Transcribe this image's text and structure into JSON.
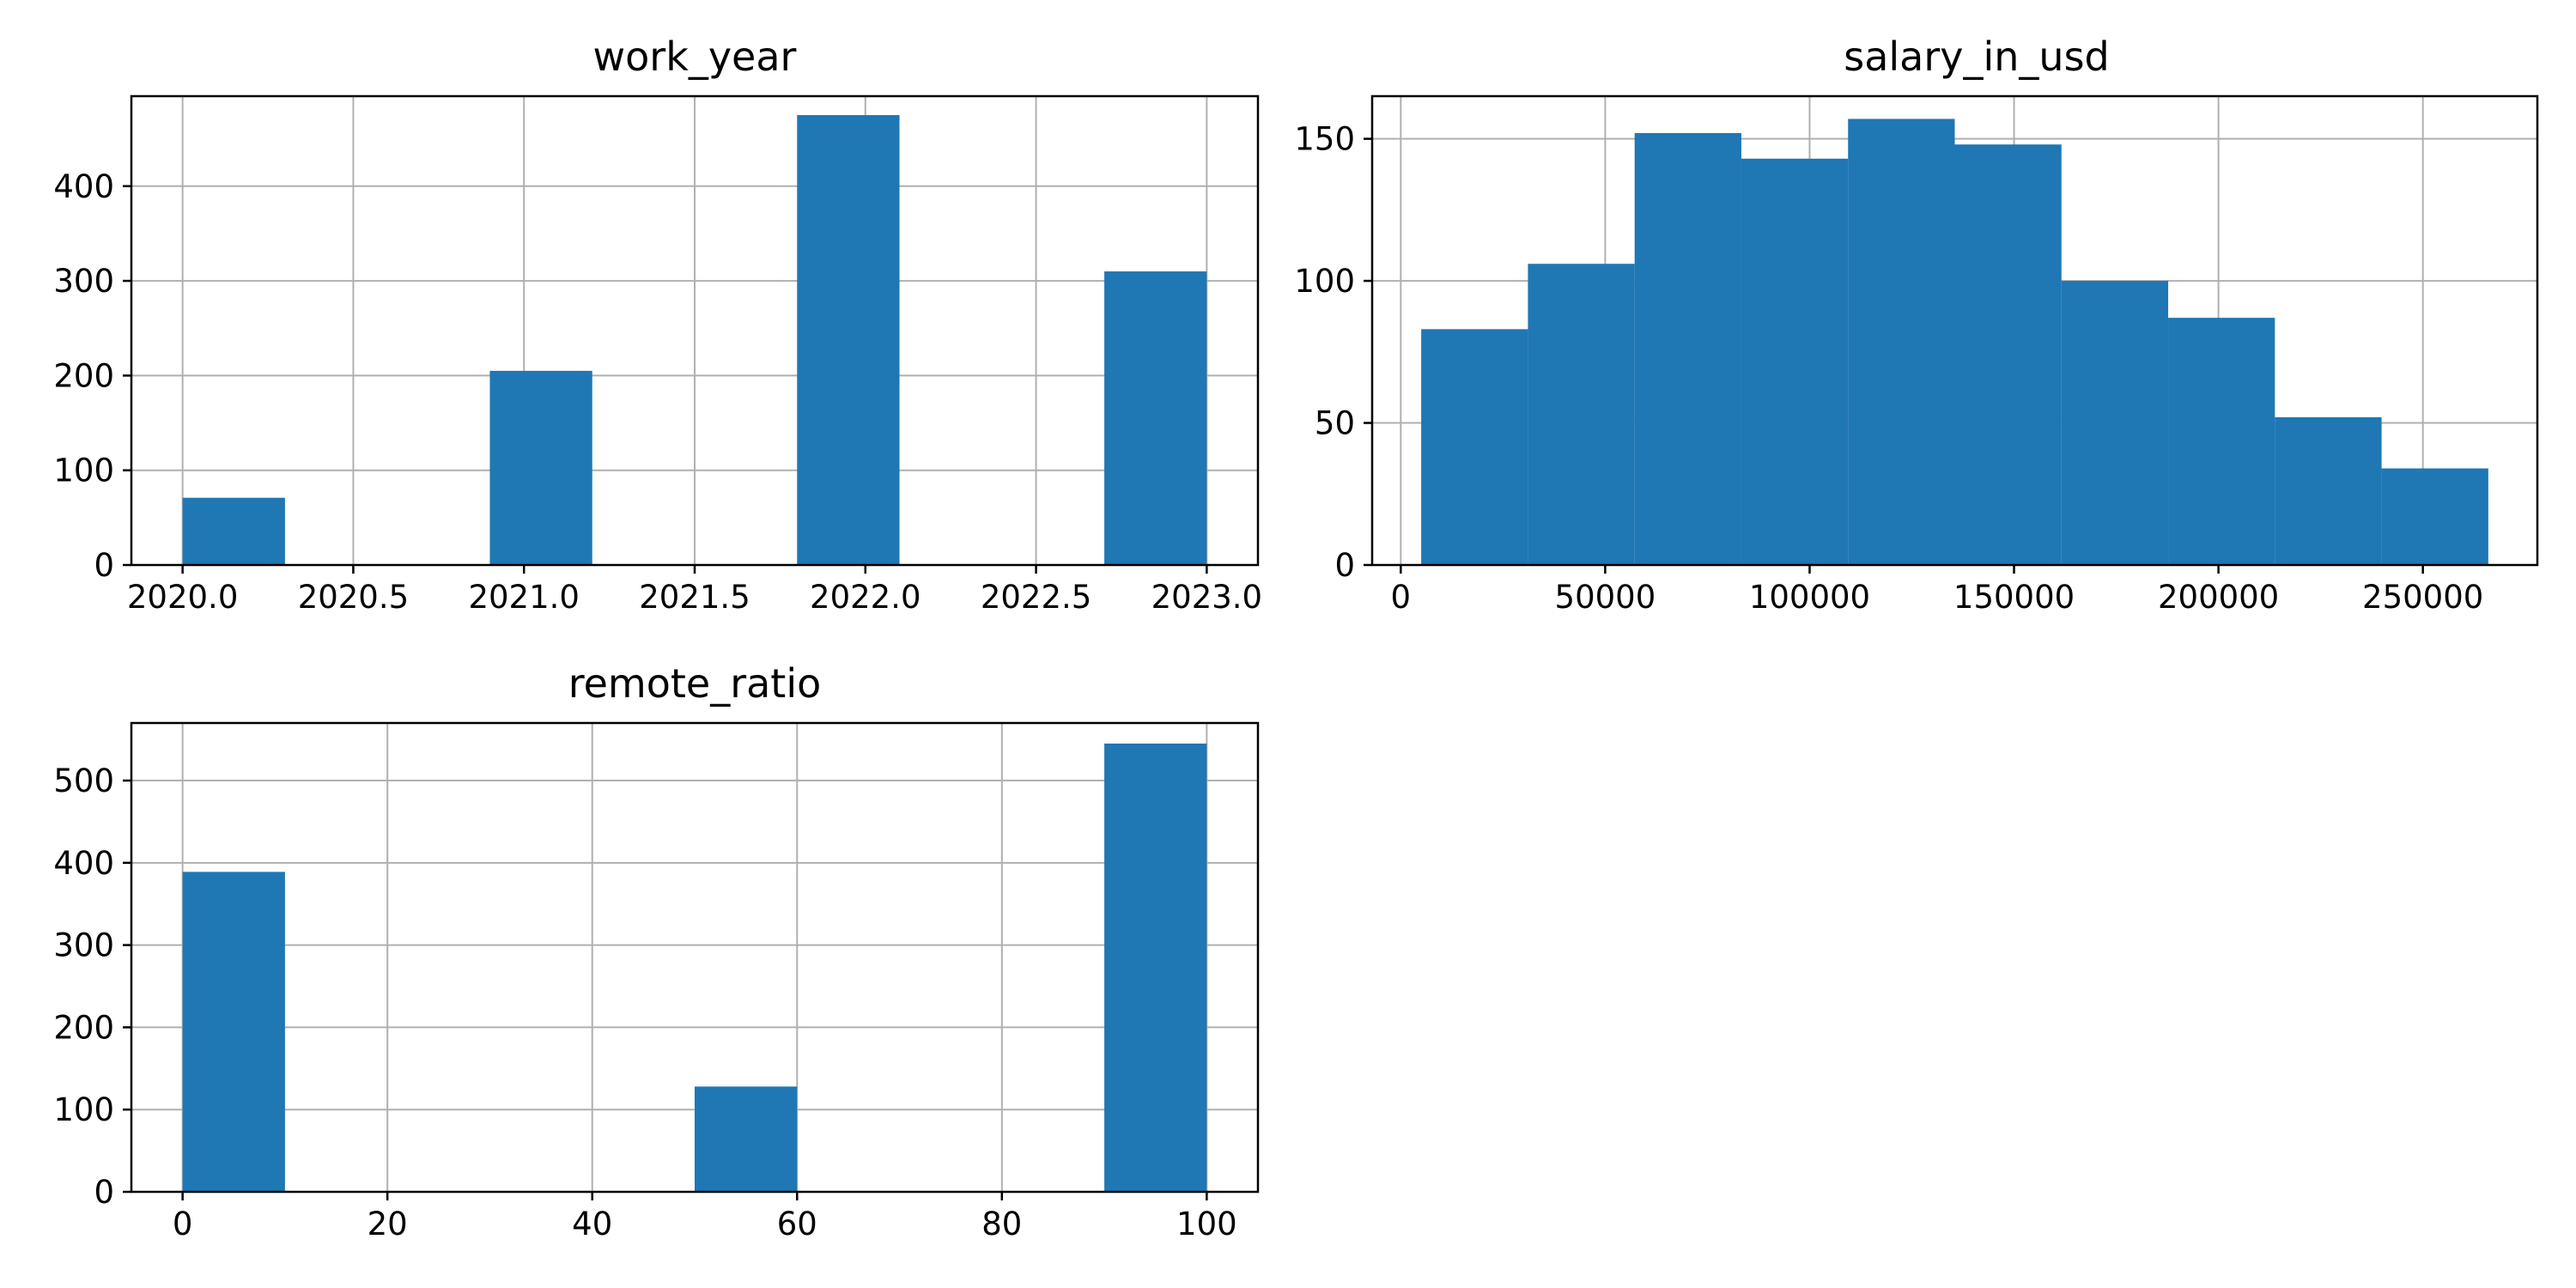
{
  "chart_data": [
    {
      "type": "bar",
      "title": "work_year",
      "xlabel": "",
      "ylabel": "",
      "grid": true,
      "color": "#1f77b4",
      "xlim": [
        2019.85,
        2023.15
      ],
      "ylim": [
        0,
        495
      ],
      "xticks": [
        "2020.0",
        "2020.5",
        "2021.0",
        "2021.5",
        "2022.0",
        "2022.5",
        "2023.0"
      ],
      "yticks": [
        "0",
        "100",
        "200",
        "300",
        "400"
      ],
      "bins": [
        {
          "start": 2020.0,
          "end": 2020.3,
          "count": 71
        },
        {
          "start": 2020.3,
          "end": 2020.6,
          "count": 0
        },
        {
          "start": 2020.6,
          "end": 2020.9,
          "count": 0
        },
        {
          "start": 2020.9,
          "end": 2021.2,
          "count": 205
        },
        {
          "start": 2021.2,
          "end": 2021.5,
          "count": 0
        },
        {
          "start": 2021.5,
          "end": 2021.8,
          "count": 0
        },
        {
          "start": 2021.8,
          "end": 2022.1,
          "count": 475
        },
        {
          "start": 2022.1,
          "end": 2022.4,
          "count": 0
        },
        {
          "start": 2022.4,
          "end": 2022.7,
          "count": 0
        },
        {
          "start": 2022.7,
          "end": 2023.0,
          "count": 310
        }
      ]
    },
    {
      "type": "bar",
      "title": "salary_in_usd",
      "xlabel": "",
      "ylabel": "",
      "grid": true,
      "color": "#1f77b4",
      "xlim": [
        -7000,
        278000
      ],
      "ylim": [
        0,
        165
      ],
      "xticks": [
        "0",
        "50000",
        "100000",
        "150000",
        "200000",
        "250000"
      ],
      "yticks": [
        "0",
        "50",
        "100",
        "150"
      ],
      "bins": [
        {
          "start": 5000,
          "end": 31100,
          "count": 83
        },
        {
          "start": 31100,
          "end": 57200,
          "count": 106
        },
        {
          "start": 57200,
          "end": 83300,
          "count": 152
        },
        {
          "start": 83300,
          "end": 109400,
          "count": 143
        },
        {
          "start": 109400,
          "end": 135500,
          "count": 157
        },
        {
          "start": 135500,
          "end": 161600,
          "count": 148
        },
        {
          "start": 161600,
          "end": 187700,
          "count": 100
        },
        {
          "start": 187700,
          "end": 213800,
          "count": 87
        },
        {
          "start": 213800,
          "end": 239900,
          "count": 52
        },
        {
          "start": 239900,
          "end": 266000,
          "count": 34
        }
      ]
    },
    {
      "type": "bar",
      "title": "remote_ratio",
      "xlabel": "",
      "ylabel": "",
      "grid": true,
      "color": "#1f77b4",
      "xlim": [
        -5,
        105
      ],
      "ylim": [
        0,
        570
      ],
      "xticks": [
        "0",
        "20",
        "40",
        "60",
        "80",
        "100"
      ],
      "yticks": [
        "0",
        "100",
        "200",
        "300",
        "400",
        "500"
      ],
      "bins": [
        {
          "start": 0,
          "end": 10,
          "count": 389
        },
        {
          "start": 10,
          "end": 20,
          "count": 0
        },
        {
          "start": 20,
          "end": 30,
          "count": 0
        },
        {
          "start": 30,
          "end": 40,
          "count": 0
        },
        {
          "start": 40,
          "end": 50,
          "count": 0
        },
        {
          "start": 50,
          "end": 60,
          "count": 128
        },
        {
          "start": 60,
          "end": 70,
          "count": 0
        },
        {
          "start": 70,
          "end": 80,
          "count": 0
        },
        {
          "start": 80,
          "end": 90,
          "count": 0
        },
        {
          "start": 90,
          "end": 100,
          "count": 545
        }
      ]
    }
  ]
}
